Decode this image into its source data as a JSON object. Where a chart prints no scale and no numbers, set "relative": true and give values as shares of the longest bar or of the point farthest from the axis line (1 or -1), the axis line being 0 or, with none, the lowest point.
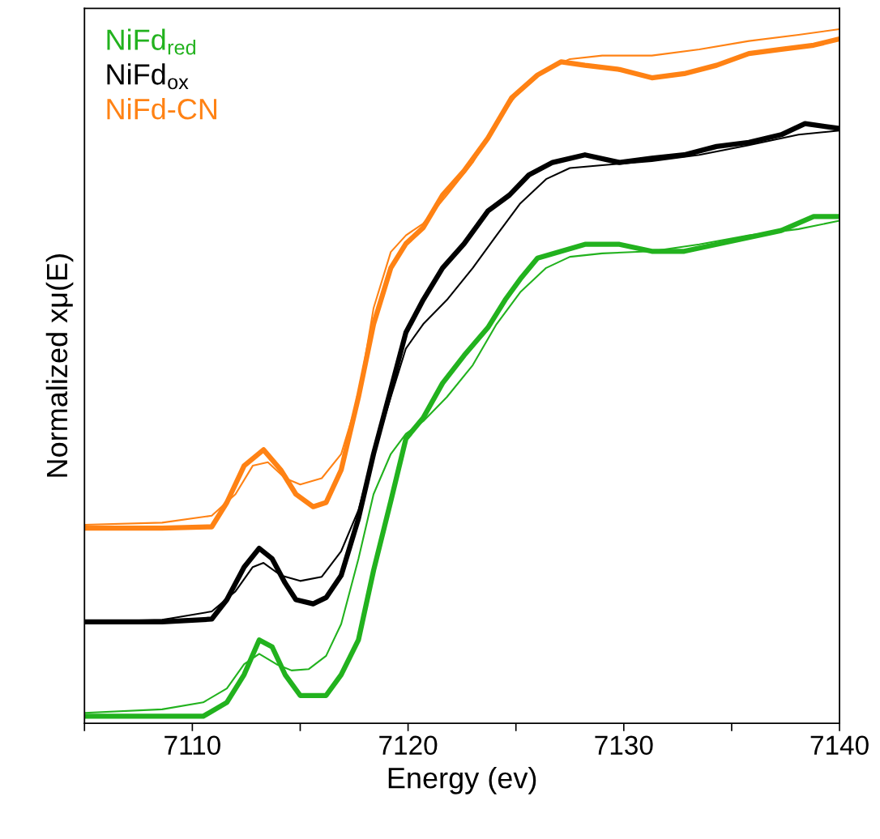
{
  "chart_data": {
    "type": "line",
    "xlabel": "Energy (ev)",
    "ylabel": "Normalized xμ(E)",
    "relative": true,
    "tick_labels": "x",
    "legend": "top left",
    "grid": false,
    "marker": "none",
    "line_style": "solid",
    "xlim": [
      7105,
      7140
    ],
    "xticks": [
      {
        "value": 7105,
        "label": null
      },
      7110,
      {
        "value": 7115,
        "label": null
      },
      7120,
      {
        "value": 7125,
        "label": null
      },
      7130,
      {
        "value": 7135,
        "label": null
      },
      7140
    ],
    "series": [
      {
        "name": "NiFd$_{red}$",
        "color": "#22b21e",
        "x": [
          7105,
          7106.7,
          7108.6,
          7110.5,
          7111.6,
          7112.4,
          7113.1,
          7113.7,
          7114.3,
          7115.0,
          7115.6,
          7116.2,
          7116.9,
          7117.7,
          7118.4,
          7119.2,
          7119.9,
          7120.7,
          7121.6,
          7122.6,
          7123.7,
          7124.5,
          7125.2,
          7126.0,
          7127.1,
          7128.2,
          7129.8,
          7131.3,
          7132.8,
          7134.3,
          7135.8,
          7137.3,
          7138.8,
          7140
        ],
        "values": [
          0.01,
          0.01,
          0.01,
          0.01,
          0.03,
          0.07,
          0.12,
          0.11,
          0.07,
          0.04,
          0.04,
          0.04,
          0.07,
          0.12,
          0.22,
          0.32,
          0.41,
          0.44,
          0.49,
          0.53,
          0.57,
          0.61,
          0.64,
          0.67,
          0.68,
          0.69,
          0.69,
          0.68,
          0.68,
          0.69,
          0.7,
          0.71,
          0.73,
          0.73
        ]
      },
      {
        "color": "#22b21e",
        "x": [
          7105,
          7108.6,
          7110.5,
          7111.6,
          7112.4,
          7113.1,
          7113.9,
          7114.6,
          7115.4,
          7116.2,
          7116.9,
          7117.7,
          7118.4,
          7119.2,
          7119.9,
          7120.7,
          7121.8,
          7123.0,
          7124.1,
          7125.2,
          7126.4,
          7127.5,
          7129.0,
          7131.3,
          7133.5,
          7135.8,
          7138.1,
          7140
        ],
        "values": [
          0.015,
          0.02,
          0.03,
          0.05,
          0.085,
          0.1,
          0.085,
          0.076,
          0.078,
          0.097,
          0.143,
          0.237,
          0.33,
          0.388,
          0.417,
          0.435,
          0.47,
          0.516,
          0.575,
          0.621,
          0.656,
          0.672,
          0.677,
          0.68,
          0.69,
          0.703,
          0.712,
          0.724
        ]
      },
      {
        "name": "NiFd$_{ox}$",
        "color": "#000000",
        "x": [
          7105,
          7108.6,
          7110.9,
          7111.6,
          7112.4,
          7113.1,
          7113.7,
          7114.3,
          7114.8,
          7115.6,
          7116.2,
          7116.9,
          7117.7,
          7118.4,
          7119.2,
          7119.9,
          7120.7,
          7121.6,
          7122.6,
          7123.7,
          7124.7,
          7125.6,
          7126.7,
          7128.2,
          7129.8,
          7131.3,
          7132.8,
          7134.3,
          7135.8,
          7137.3,
          7138.4,
          7140
        ],
        "values": [
          0.146,
          0.146,
          0.15,
          0.178,
          0.225,
          0.252,
          0.237,
          0.202,
          0.178,
          0.172,
          0.181,
          0.213,
          0.295,
          0.388,
          0.481,
          0.563,
          0.61,
          0.656,
          0.691,
          0.738,
          0.761,
          0.79,
          0.808,
          0.819,
          0.808,
          0.814,
          0.819,
          0.831,
          0.837,
          0.848,
          0.864,
          0.857
        ]
      },
      {
        "color": "#000000",
        "x": [
          7105,
          7108.6,
          7110.9,
          7112.0,
          7112.8,
          7113.3,
          7114.1,
          7115.0,
          7116.0,
          7116.9,
          7117.7,
          7118.4,
          7119.2,
          7119.9,
          7120.7,
          7121.8,
          7123.0,
          7124.1,
          7125.2,
          7126.4,
          7127.5,
          7129.0,
          7131.3,
          7133.5,
          7135.8,
          7138.1,
          7140
        ],
        "values": [
          0.146,
          0.149,
          0.161,
          0.19,
          0.225,
          0.231,
          0.213,
          0.205,
          0.211,
          0.248,
          0.307,
          0.388,
          0.47,
          0.54,
          0.575,
          0.61,
          0.656,
          0.703,
          0.749,
          0.784,
          0.8,
          0.804,
          0.81,
          0.819,
          0.833,
          0.848,
          0.854
        ]
      },
      {
        "name": "NiFd-CN",
        "color": "#ff8214",
        "x": [
          7105,
          7108.6,
          7110.9,
          7111.6,
          7112.4,
          7113.3,
          7114.1,
          7114.8,
          7115.6,
          7116.2,
          7116.9,
          7117.7,
          7118.4,
          7119.2,
          7119.9,
          7120.7,
          7121.6,
          7122.6,
          7123.7,
          7124.8,
          7126.0,
          7127.1,
          7128.2,
          7129.8,
          7131.3,
          7132.8,
          7134.3,
          7135.8,
          7137.3,
          7138.8,
          7140
        ],
        "values": [
          0.281,
          0.281,
          0.283,
          0.318,
          0.371,
          0.394,
          0.365,
          0.33,
          0.312,
          0.318,
          0.365,
          0.47,
          0.575,
          0.656,
          0.691,
          0.714,
          0.761,
          0.796,
          0.843,
          0.901,
          0.934,
          0.953,
          0.948,
          0.942,
          0.93,
          0.936,
          0.948,
          0.965,
          0.971,
          0.977,
          0.986
        ]
      },
      {
        "color": "#ff8214",
        "x": [
          7105,
          7108.6,
          7110.9,
          7112.0,
          7112.8,
          7113.5,
          7114.3,
          7115.0,
          7116.0,
          7116.9,
          7117.7,
          7118.4,
          7119.2,
          7119.9,
          7120.7,
          7121.8,
          7123.0,
          7124.1,
          7125.2,
          7126.4,
          7127.5,
          7129.0,
          7131.3,
          7133.5,
          7135.8,
          7138.1,
          7140
        ],
        "values": [
          0.286,
          0.289,
          0.299,
          0.33,
          0.371,
          0.376,
          0.353,
          0.344,
          0.353,
          0.388,
          0.47,
          0.598,
          0.679,
          0.703,
          0.72,
          0.761,
          0.808,
          0.866,
          0.913,
          0.942,
          0.957,
          0.962,
          0.962,
          0.971,
          0.983,
          0.992,
          1.0
        ]
      }
    ]
  }
}
